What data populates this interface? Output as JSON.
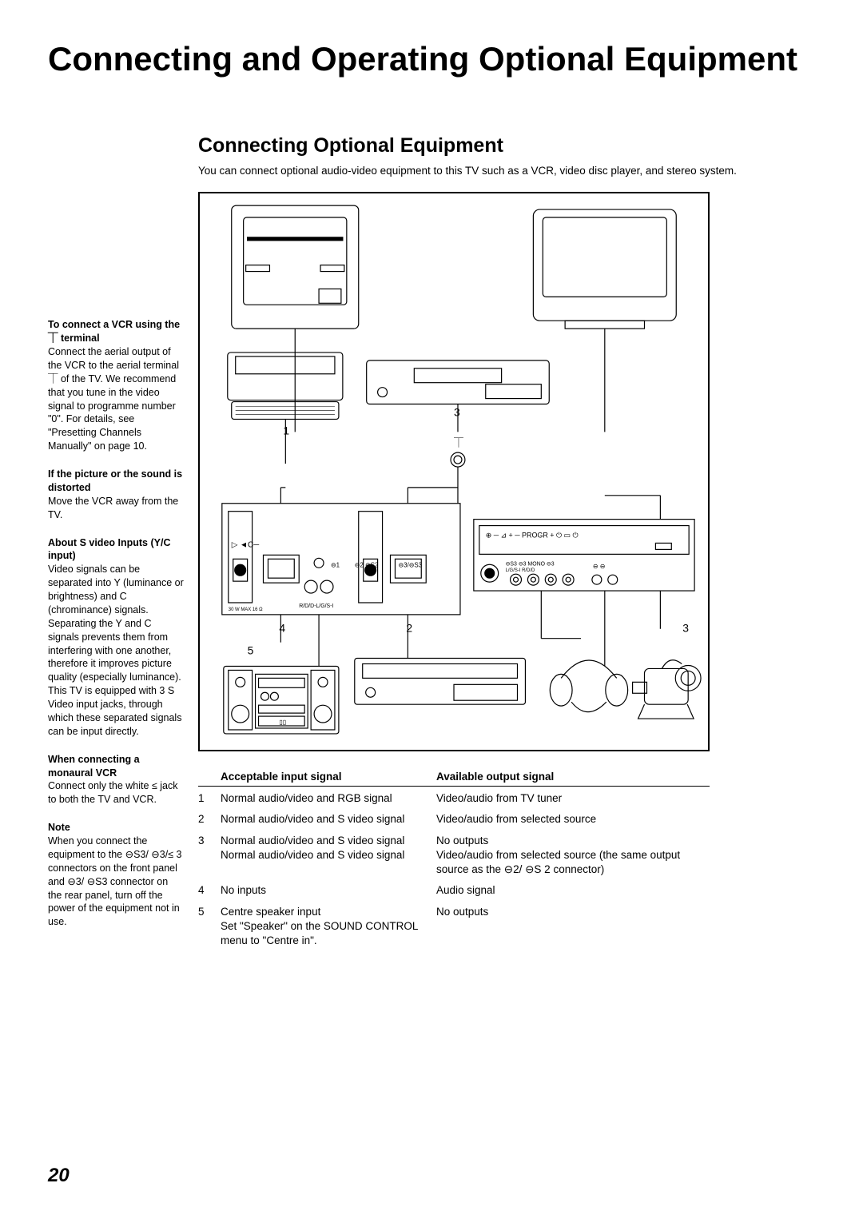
{
  "title": "Connecting and Operating Optional Equipment",
  "subtitle": "Connecting Optional Equipment",
  "intro": "You can connect optional audio-video equipment to this TV such as a VCR, video disc player, and stereo system.",
  "sidebar": {
    "b1_hd": "To connect a VCR using the ⏉ terminal",
    "b1_tx": "Connect the aerial output of the VCR to the aerial terminal ⏉ of the TV. We recommend that you tune in the video signal to programme number \"0\". For details, see \"Presetting Channels Manually\" on page 10.",
    "b2_hd": "If the picture or the sound is distorted",
    "b2_tx": "Move the VCR away from the TV.",
    "b3_hd": "About S video Inputs (Y/C input)",
    "b3_tx": "Video signals can be separated into Y (luminance or brightness) and C (chrominance) signals. Separating the Y and C signals prevents them from interfering with one another, therefore it improves picture quality (especially luminance). This TV is equipped with 3 S Video input jacks, through which these separated signals can be input directly.",
    "b4_hd": "When connecting a monaural VCR",
    "b4_tx": "Connect only the white ≤ jack to both the TV and VCR.",
    "b5_hd": "Note",
    "b5_tx": "When you connect the equipment to the ⊖S3/ ⊖3/≤ 3 connectors on the front panel and ⊖3/ ⊖S3 connector on the rear panel, turn off the power of the equipment not in use."
  },
  "table": {
    "h_input": "Acceptable input signal",
    "h_output": "Available output signal",
    "rows": [
      {
        "n": "1",
        "in": "Normal audio/video and RGB signal",
        "out": "Video/audio from TV tuner"
      },
      {
        "n": "2",
        "in": "Normal audio/video and S video signal",
        "out": "Video/audio from selected source"
      },
      {
        "n": "3",
        "in": "Normal audio/video and S video signal\nNormal audio/video and S video signal",
        "out": "No outputs\nVideo/audio from selected source (the same output source as the ⊖2/ ⊖S 2 connector)"
      },
      {
        "n": "4",
        "in": "No inputs",
        "out": "Audio signal"
      },
      {
        "n": "5",
        "in": "Centre speaker input\nSet \"Speaker\" on the SOUND CONTROL menu to \"Centre in\".",
        "out": "No outputs"
      }
    ]
  },
  "diagram_labels": {
    "l1": "1",
    "l2": "2",
    "l3a": "3",
    "l3b": "3",
    "l4": "4",
    "l5": "5"
  },
  "page_number": "20",
  "colors": {
    "text": "#000000",
    "bg": "#ffffff",
    "line": "#000000"
  }
}
